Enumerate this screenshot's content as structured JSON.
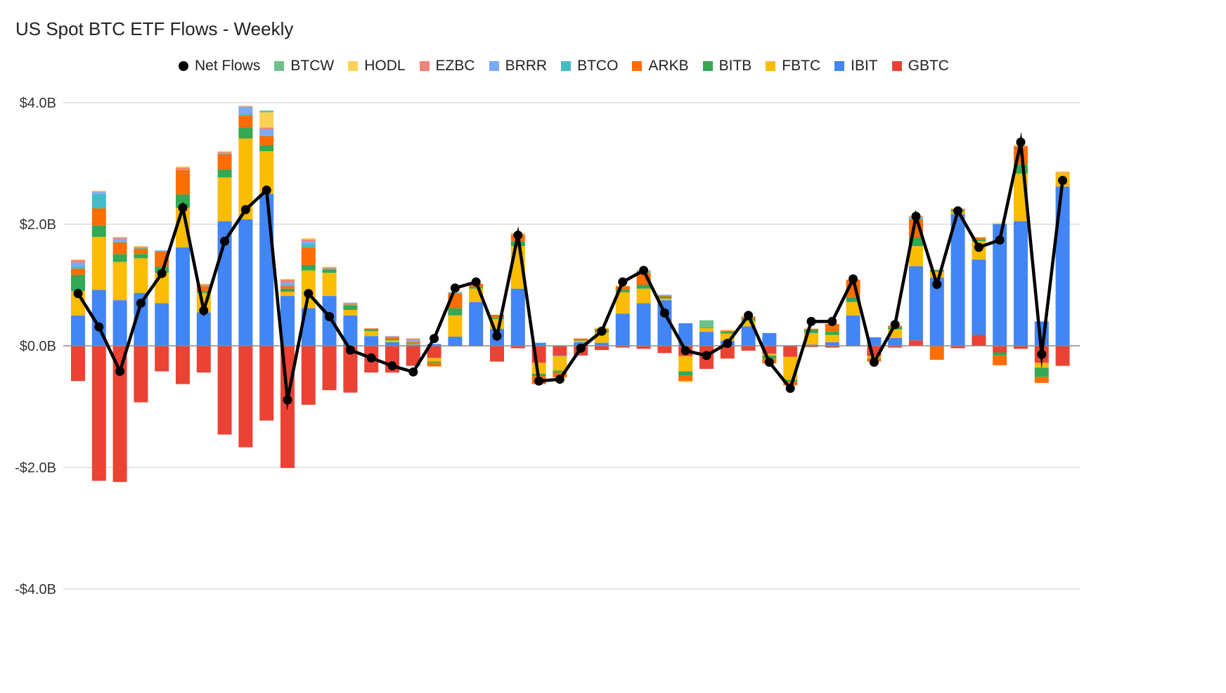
{
  "chart_data": {
    "type": "bar",
    "subtype": "stacked-bar-with-line",
    "title": "US Spot BTC ETF Flows - Weekly",
    "xlabel": "",
    "ylabel": "",
    "ylim": [
      -4.0,
      4.0
    ],
    "yticks": [
      4.0,
      2.0,
      0.0,
      -2.0,
      -4.0
    ],
    "ytick_labels": [
      "$4.0B",
      "$2.0B",
      "$0.0B",
      "-$2.0B",
      "-$4.0B"
    ],
    "grid": true,
    "legend_position": "top",
    "legend": [
      "Net Flows",
      "BTCW",
      "HODL",
      "EZBC",
      "BRRR",
      "BTCO",
      "ARKB",
      "BITB",
      "FBTC",
      "IBIT",
      "GBTC"
    ],
    "colors": {
      "Net Flows": "#000000",
      "BTCW": "#6cc18a",
      "HODL": "#fbd255",
      "EZBC": "#f08478",
      "BRRR": "#7baaf7",
      "BTCO": "#46bdc6",
      "ARKB": "#ff6d01",
      "BITB": "#34a853",
      "FBTC": "#fbbc04",
      "IBIT": "#4285f4",
      "GBTC": "#ea4335"
    },
    "stack_order": [
      "GBTC",
      "IBIT",
      "FBTC",
      "BITB",
      "ARKB",
      "BTCO",
      "BRRR",
      "EZBC",
      "HODL",
      "BTCW"
    ],
    "n_weeks": 48,
    "series": [
      {
        "name": "IBIT",
        "values": [
          0.5,
          0.92,
          0.75,
          0.87,
          0.7,
          1.62,
          0.55,
          2.05,
          2.08,
          2.5,
          0.82,
          0.62,
          0.82,
          0.5,
          0.16,
          0.06,
          0.02,
          0.03,
          0.15,
          0.72,
          0.28,
          0.94,
          0.05,
          -0.02,
          0.06,
          0.05,
          0.53,
          0.7,
          0.75,
          0.37,
          0.23,
          0.08,
          0.32,
          0.21,
          0.0,
          0.02,
          0.06,
          0.5,
          0.14,
          0.13,
          1.22,
          1.12,
          2.17,
          1.24,
          2.0,
          2.05,
          0.4,
          2.62
        ]
      },
      {
        "name": "FBTC",
        "values": [
          0.4,
          0.87,
          0.63,
          0.57,
          0.5,
          0.65,
          0.32,
          0.72,
          1.33,
          0.7,
          0.07,
          0.62,
          0.38,
          0.09,
          0.08,
          0.03,
          0.01,
          -0.06,
          0.35,
          0.22,
          0.16,
          0.7,
          -0.18,
          -0.24,
          0.02,
          0.17,
          0.35,
          0.24,
          0.03,
          -0.25,
          0.06,
          0.12,
          0.09,
          -0.03,
          -0.38,
          0.19,
          0.12,
          0.22,
          -0.03,
          0.14,
          0.33,
          0.1,
          0.04,
          0.3,
          0.01,
          0.78,
          -0.08,
          0.22
        ]
      },
      {
        "name": "BITB",
        "values": [
          0.27,
          0.19,
          0.13,
          0.07,
          0.1,
          0.22,
          0.03,
          0.13,
          0.18,
          0.1,
          0.05,
          0.09,
          0.05,
          0.07,
          0.02,
          0.02,
          0.01,
          -0.02,
          0.12,
          0.03,
          0.02,
          0.08,
          -0.04,
          -0.03,
          0.01,
          0.03,
          0.04,
          0.06,
          0.03,
          -0.07,
          0.01,
          0.03,
          0.04,
          -0.05,
          -0.03,
          0.05,
          0.05,
          0.08,
          -0.01,
          0.04,
          0.14,
          0.03,
          0.03,
          0.03,
          -0.05,
          0.15,
          -0.15,
          0.0
        ]
      },
      {
        "name": "ARKB",
        "values": [
          0.1,
          0.28,
          0.19,
          0.09,
          0.25,
          0.4,
          0.08,
          0.25,
          0.2,
          0.15,
          0.04,
          0.29,
          0.02,
          0.02,
          0.02,
          0.03,
          0.02,
          -0.06,
          0.24,
          0.05,
          0.05,
          0.1,
          -0.13,
          -0.08,
          0.03,
          0.03,
          0.06,
          0.2,
          0.01,
          -0.09,
          0.0,
          0.02,
          0.03,
          -0.08,
          -0.06,
          0.02,
          0.13,
          0.28,
          -0.05,
          0.02,
          0.3,
          -0.22,
          0.01,
          0.03,
          -0.16,
          0.3,
          -0.1,
          0.0
        ]
      },
      {
        "name": "BTCO",
        "values": [
          0.04,
          0.24,
          0.02,
          0.01,
          0.01,
          0.0,
          0.01,
          0.01,
          0.02,
          0.01,
          0.03,
          0.06,
          0.0,
          0.01,
          0.0,
          0.0,
          0.01,
          0.0,
          0.01,
          0.0,
          0.0,
          0.0,
          0.0,
          0.0,
          0.0,
          0.0,
          0.0,
          0.02,
          0.0,
          0.0,
          0.0,
          0.0,
          0.0,
          0.0,
          0.0,
          0.0,
          0.0,
          0.0,
          0.0,
          0.0,
          0.02,
          0.0,
          0.0,
          0.0,
          0.0,
          0.0,
          0.0,
          0.0
        ]
      },
      {
        "name": "BRRR",
        "values": [
          0.06,
          0.03,
          0.04,
          0.01,
          0.01,
          0.01,
          0.01,
          0.01,
          0.12,
          0.1,
          0.03,
          0.04,
          0.01,
          0.01,
          0.0,
          0.01,
          0.02,
          0.0,
          0.01,
          0.0,
          0.0,
          0.01,
          0.0,
          0.0,
          0.0,
          0.0,
          0.0,
          0.01,
          0.02,
          0.0,
          0.0,
          0.0,
          0.0,
          0.0,
          0.0,
          0.0,
          0.0,
          0.0,
          0.0,
          0.0,
          0.02,
          0.0,
          0.0,
          0.0,
          0.0,
          0.0,
          0.0,
          0.0
        ]
      },
      {
        "name": "EZBC",
        "values": [
          0.04,
          0.01,
          0.02,
          0.01,
          0.0,
          0.03,
          0.01,
          0.02,
          0.01,
          0.03,
          0.05,
          0.03,
          0.01,
          0.01,
          0.01,
          0.01,
          0.03,
          0.0,
          0.0,
          0.0,
          0.0,
          0.01,
          0.0,
          0.0,
          0.0,
          0.0,
          0.0,
          0.01,
          0.0,
          0.0,
          0.0,
          0.0,
          0.0,
          0.0,
          0.0,
          0.0,
          0.0,
          0.01,
          0.0,
          0.0,
          0.01,
          0.0,
          0.0,
          0.0,
          0.0,
          0.01,
          0.0,
          0.01
        ]
      },
      {
        "name": "HODL",
        "values": [
          0.01,
          0.01,
          0.01,
          0.01,
          0.0,
          0.02,
          0.01,
          0.01,
          0.01,
          0.25,
          0.01,
          0.02,
          0.01,
          0.0,
          0.0,
          0.0,
          0.0,
          0.0,
          0.01,
          0.0,
          0.0,
          0.02,
          0.0,
          0.0,
          0.0,
          0.02,
          0.01,
          0.01,
          0.0,
          -0.02,
          0.0,
          0.01,
          0.0,
          0.0,
          0.0,
          0.0,
          0.0,
          0.0,
          0.0,
          0.0,
          0.01,
          0.0,
          0.01,
          0.01,
          0.01,
          0.01,
          0.0,
          0.02
        ]
      },
      {
        "name": "BTCW",
        "values": [
          0.0,
          0.0,
          0.0,
          0.0,
          0.0,
          0.0,
          0.0,
          0.0,
          0.0,
          0.03,
          0.0,
          0.0,
          0.0,
          0.0,
          0.0,
          0.0,
          0.0,
          0.0,
          0.0,
          0.0,
          0.0,
          0.0,
          0.0,
          0.0,
          0.0,
          0.0,
          0.0,
          0.0,
          0.0,
          0.0,
          0.12,
          0.0,
          0.0,
          0.0,
          0.0,
          0.0,
          0.0,
          0.0,
          0.0,
          0.0,
          0.0,
          0.0,
          0.0,
          0.0,
          0.0,
          0.0,
          0.0,
          0.0
        ]
      },
      {
        "name": "GBTC",
        "values": [
          -0.58,
          -2.22,
          -2.24,
          -0.93,
          -0.42,
          -0.63,
          -0.44,
          -1.46,
          -1.67,
          -1.23,
          -2.01,
          -0.97,
          -0.73,
          -0.77,
          -0.44,
          -0.44,
          -0.33,
          -0.2,
          -0.01,
          -0.01,
          -0.26,
          -0.04,
          -0.28,
          -0.15,
          -0.16,
          -0.07,
          -0.03,
          -0.05,
          -0.12,
          -0.17,
          -0.38,
          -0.21,
          -0.08,
          -0.13,
          -0.18,
          -0.02,
          -0.03,
          -0.01,
          -0.17,
          -0.03,
          0.09,
          -0.01,
          -0.04,
          0.18,
          -0.11,
          -0.05,
          -0.28,
          -0.33
        ]
      },
      {
        "name": "Net Flows",
        "type": "line",
        "values": [
          0.86,
          0.31,
          -0.42,
          0.7,
          1.19,
          2.27,
          0.58,
          1.72,
          2.24,
          2.56,
          -0.89,
          0.86,
          0.48,
          -0.07,
          -0.2,
          -0.33,
          -0.43,
          0.12,
          0.95,
          1.05,
          0.16,
          1.82,
          -0.58,
          -0.55,
          -0.04,
          0.24,
          1.05,
          1.24,
          0.54,
          -0.08,
          -0.16,
          0.04,
          0.5,
          -0.27,
          -0.7,
          0.4,
          0.4,
          1.1,
          -0.27,
          0.35,
          2.13,
          1.01,
          2.22,
          1.62,
          1.74,
          3.35,
          -0.14,
          2.72
        ]
      }
    ]
  }
}
